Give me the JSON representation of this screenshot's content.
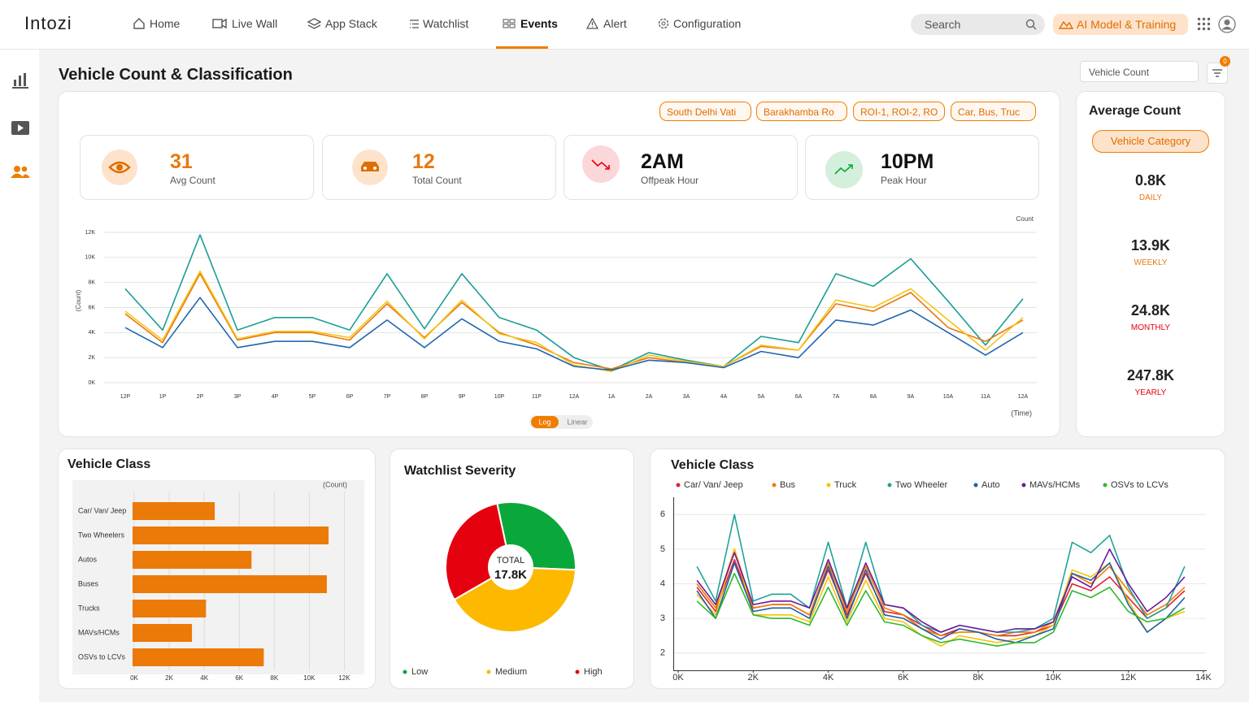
{
  "header": {
    "logo": "Intozi",
    "nav": [
      "Home",
      "Live Wall",
      "App Stack",
      "Watchlist",
      "Events",
      "Alert",
      "Configuration"
    ],
    "active_nav": 4,
    "search": "Search",
    "ai_button": "AI Model & Training"
  },
  "page": {
    "title": "Vehicle Count & Classification",
    "metric_select": "Vehicle Count",
    "filter_badge": "0",
    "filters": [
      "South Delhi Vati",
      "Barakhamba Ro",
      "ROI-1, ROI-2, RO",
      "Car, Bus, Truc"
    ]
  },
  "kpis": [
    {
      "value": "31",
      "label": "Avg Count"
    },
    {
      "value": "12",
      "label": "Total Count"
    },
    {
      "value": "2AM",
      "label": "Offpeak Hour"
    },
    {
      "value": "10PM",
      "label": "Peak Hour"
    }
  ],
  "average_count": {
    "title": "Average Count",
    "category_button": "Vehicle Category",
    "items": [
      {
        "value": "0.8K",
        "label": "DAILY"
      },
      {
        "value": "13.9K",
        "label": "WEEKLY"
      },
      {
        "value": "24.8K",
        "label": "MONTHLY"
      },
      {
        "value": "247.8K",
        "label": "YEARLY"
      }
    ]
  },
  "chart_data": [
    {
      "type": "line",
      "y_title": "Count",
      "y_label": "(Count)",
      "x_label": "(Time)",
      "scale_toggle": [
        "Log",
        "Linear"
      ],
      "categories": [
        "12P",
        "1P",
        "2P",
        "3P",
        "4P",
        "5P",
        "6P",
        "7P",
        "8P",
        "9P",
        "10P",
        "11P",
        "12A",
        "1A",
        "2A",
        "3A",
        "4A",
        "5A",
        "6A",
        "7A",
        "8A",
        "9A",
        "10A",
        "11A",
        "12A"
      ],
      "series": [
        {
          "color": "#1a9e95",
          "values": [
            7500,
            4200,
            11800,
            4200,
            5200,
            5200,
            4200,
            8700,
            4300,
            8700,
            5200,
            4200,
            2000,
            1000,
            2400,
            1800,
            1300,
            3700,
            3200,
            8700,
            7700,
            9900,
            6500,
            3000,
            6700
          ]
        },
        {
          "color": "#e8780f",
          "values": [
            5500,
            3200,
            8700,
            3400,
            4000,
            4000,
            3400,
            6300,
            3600,
            6400,
            4000,
            3000,
            1600,
            1100,
            2000,
            1600,
            1300,
            2900,
            2600,
            6300,
            5700,
            7200,
            4400,
            3300,
            5000
          ]
        },
        {
          "color": "#f5c518",
          "values": [
            5700,
            3400,
            8900,
            3500,
            4100,
            4100,
            3600,
            6500,
            3500,
            6600,
            3900,
            3200,
            1400,
            900,
            2200,
            1700,
            1300,
            3000,
            2600,
            6600,
            6000,
            7500,
            5000,
            2600,
            5200
          ]
        },
        {
          "color": "#1f66b0",
          "values": [
            4400,
            2800,
            6800,
            2800,
            3300,
            3300,
            2800,
            5000,
            2800,
            5100,
            3300,
            2700,
            1300,
            1000,
            1800,
            1600,
            1200,
            2500,
            2000,
            5000,
            4600,
            5800,
            4000,
            2200,
            4000
          ]
        }
      ],
      "ylim": [
        0,
        12000
      ],
      "yticks": [
        {
          "value": 0,
          "label": "0K"
        },
        {
          "value": 2000,
          "label": "2K"
        },
        {
          "value": 4000,
          "label": "4K"
        },
        {
          "value": 6000,
          "label": "6K"
        },
        {
          "value": 8000,
          "label": "8K"
        },
        {
          "value": 10000,
          "label": "10K"
        },
        {
          "value": 12000,
          "label": "12K"
        }
      ],
      "grid": true
    },
    {
      "type": "barh",
      "title": "Vehicle Class",
      "x_label": "(Count)",
      "categories": [
        "Car/ Van/ Jeep",
        "Two Wheelers",
        "Autos",
        "Buses",
        "Trucks",
        "MAVs/HCMs",
        "OSVs to LCVs"
      ],
      "values": [
        4600,
        11100,
        6700,
        11000,
        4100,
        3300,
        7400
      ],
      "color": "#ec7a08",
      "xlim": [
        0,
        13000
      ],
      "xticks": [
        {
          "value": 0,
          "label": "0K"
        },
        {
          "value": 2000,
          "label": "2K"
        },
        {
          "value": 4000,
          "label": "4K"
        },
        {
          "value": 6000,
          "label": "6K"
        },
        {
          "value": 8000,
          "label": "8K"
        },
        {
          "value": 10000,
          "label": "10K"
        },
        {
          "value": 12000,
          "label": "12K"
        }
      ],
      "grid": true
    },
    {
      "type": "pie",
      "title": "Watchlist Severity",
      "center_label": "TOTAL",
      "center_value": "17.8K",
      "categories": [
        "Low",
        "Medium",
        "High"
      ],
      "values": [
        29,
        41,
        30
      ],
      "colors": [
        "#0aa83a",
        "#fdb900",
        "#e5000f"
      ]
    },
    {
      "type": "line",
      "title": "Vehicle Class",
      "x": [
        500,
        1000,
        1500,
        2000,
        2500,
        3000,
        3500,
        4000,
        4500,
        5000,
        5500,
        6000,
        6500,
        7000,
        7500,
        8000,
        8500,
        9000,
        9500,
        10000,
        10500,
        11000,
        11500,
        12000,
        12500,
        13000,
        13500
      ],
      "series": [
        {
          "name": "Car/ Van/ Jeep",
          "color": "#e0203a",
          "values": [
            3.9,
            3.2,
            4.7,
            3.3,
            3.4,
            3.4,
            3.1,
            4.4,
            3.1,
            4.3,
            3.2,
            3.1,
            2.8,
            2.5,
            2.7,
            2.6,
            2.5,
            2.5,
            2.6,
            2.8,
            4.0,
            3.8,
            4.2,
            3.6,
            3.0,
            3.3,
            3.8
          ]
        },
        {
          "name": "Bus",
          "color": "#f07d00",
          "values": [
            4.0,
            3.3,
            5.0,
            3.3,
            3.4,
            3.4,
            3.1,
            4.6,
            3.2,
            4.5,
            3.3,
            3.1,
            2.7,
            2.5,
            2.6,
            2.6,
            2.5,
            2.6,
            2.6,
            2.9,
            4.3,
            4.0,
            4.5,
            3.8,
            3.1,
            3.4,
            3.9
          ]
        },
        {
          "name": "Truck",
          "color": "#f5c400",
          "values": [
            3.7,
            3.1,
            5.0,
            3.1,
            3.1,
            3.1,
            2.9,
            4.2,
            2.9,
            4.1,
            3.0,
            2.9,
            2.5,
            2.2,
            2.5,
            2.4,
            2.3,
            2.4,
            2.5,
            2.8,
            4.4,
            4.2,
            4.6,
            3.5,
            2.6,
            3.0,
            3.2
          ]
        },
        {
          "name": "Two Wheeler",
          "color": "#1fa39a",
          "values": [
            4.5,
            3.5,
            6.0,
            3.5,
            3.7,
            3.7,
            3.3,
            5.2,
            3.3,
            5.2,
            3.4,
            3.3,
            2.8,
            2.6,
            2.8,
            2.7,
            2.6,
            2.6,
            2.7,
            3.0,
            5.2,
            4.9,
            5.4,
            3.9,
            3.0,
            3.3,
            4.5
          ]
        },
        {
          "name": "Auto",
          "color": "#1f5fa8",
          "values": [
            3.8,
            3.0,
            4.6,
            3.2,
            3.3,
            3.3,
            3.0,
            4.5,
            3.0,
            4.4,
            3.1,
            3.0,
            2.7,
            2.4,
            2.7,
            2.6,
            2.4,
            2.3,
            2.5,
            2.7,
            4.3,
            4.1,
            4.6,
            3.4,
            2.6,
            3.0,
            3.6
          ]
        },
        {
          "name": "MAVs/HCMs",
          "color": "#6a1b9a",
          "values": [
            4.1,
            3.4,
            4.9,
            3.4,
            3.5,
            3.5,
            3.3,
            4.7,
            3.3,
            4.6,
            3.4,
            3.3,
            2.9,
            2.6,
            2.8,
            2.7,
            2.6,
            2.7,
            2.7,
            2.9,
            4.2,
            3.9,
            5.0,
            4.0,
            3.2,
            3.6,
            4.2
          ]
        },
        {
          "name": "OSVs to LCVs",
          "color": "#2eb82e",
          "values": [
            3.5,
            3.0,
            4.3,
            3.1,
            3.0,
            3.0,
            2.8,
            3.9,
            2.8,
            3.8,
            2.9,
            2.8,
            2.5,
            2.3,
            2.4,
            2.3,
            2.2,
            2.3,
            2.3,
            2.6,
            3.8,
            3.6,
            3.9,
            3.2,
            2.9,
            3.0,
            3.3
          ]
        }
      ],
      "xlim": [
        0,
        14000
      ],
      "xticks": [
        {
          "value": 0,
          "label": "0K"
        },
        {
          "value": 2000,
          "label": "2K"
        },
        {
          "value": 4000,
          "label": "4K"
        },
        {
          "value": 6000,
          "label": "6K"
        },
        {
          "value": 8000,
          "label": "8K"
        },
        {
          "value": 10000,
          "label": "10K"
        },
        {
          "value": 12000,
          "label": "12K"
        },
        {
          "value": 14000,
          "label": "14K"
        }
      ],
      "ylim": [
        1.5,
        6.5
      ],
      "yticks": [
        2,
        3,
        4,
        5,
        6
      ],
      "grid": true
    }
  ]
}
